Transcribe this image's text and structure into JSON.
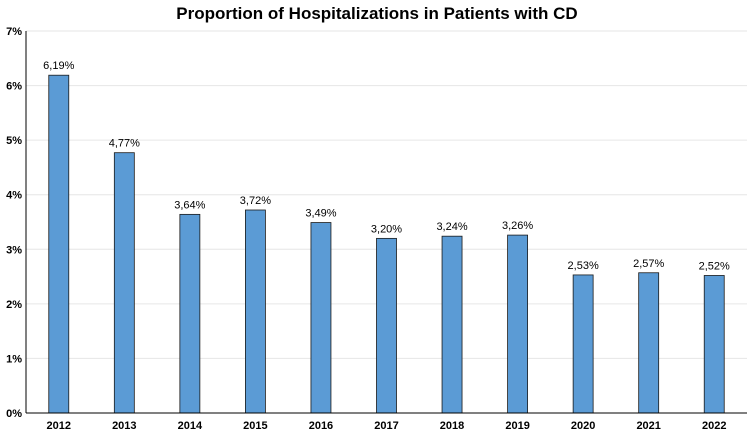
{
  "chart_data": {
    "type": "bar",
    "title": "Proportion of Hospitalizations in Patients with CD",
    "xlabel": "",
    "ylabel": "",
    "categories": [
      "2012",
      "2013",
      "2014",
      "2015",
      "2016",
      "2017",
      "2018",
      "2019",
      "2020",
      "2021",
      "2022"
    ],
    "values": [
      6.19,
      4.77,
      3.64,
      3.72,
      3.49,
      3.2,
      3.24,
      3.26,
      2.53,
      2.57,
      2.52
    ],
    "data_labels": [
      "6,19%",
      "4,77%",
      "3,64%",
      "3,72%",
      "3,49%",
      "3,20%",
      "3,24%",
      "3,26%",
      "2,53%",
      "2,57%",
      "2,52%"
    ],
    "ylim": [
      0,
      7
    ],
    "yticks": [
      0,
      1,
      2,
      3,
      4,
      5,
      6,
      7
    ],
    "ytick_labels": [
      "0%",
      "1%",
      "2%",
      "3%",
      "4%",
      "5%",
      "6%",
      "7%"
    ],
    "grid": true,
    "legend": "none",
    "colors": {
      "bar": "#5b9bd5",
      "bar_edge": "#1a1a1a"
    }
  }
}
